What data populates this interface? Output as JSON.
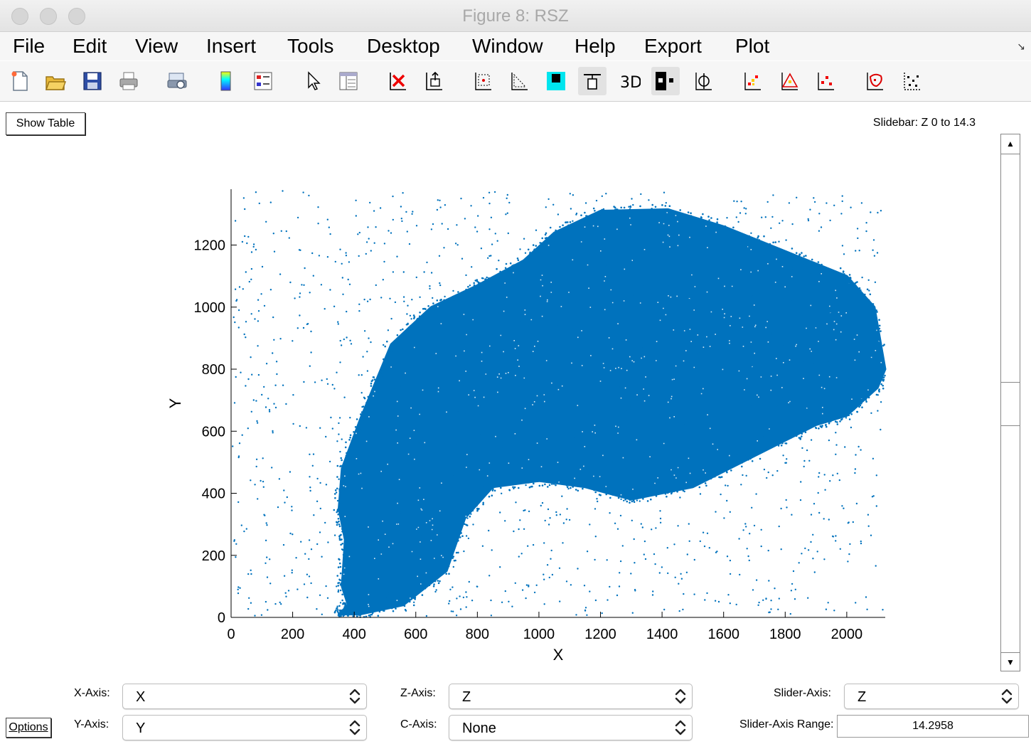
{
  "window": {
    "title": "Figure 8: RSZ"
  },
  "menu": [
    "File",
    "Edit",
    "View",
    "Insert",
    "Tools",
    "Desktop",
    "Window",
    "Help",
    "Export",
    "Plot"
  ],
  "toolbar": [
    {
      "name": "new-figure-icon",
      "x": 8
    },
    {
      "name": "open-file-icon",
      "x": 58
    },
    {
      "name": "save-icon",
      "x": 110
    },
    {
      "name": "print-icon",
      "x": 161
    },
    {
      "name": "print-preview-icon",
      "x": 229
    },
    {
      "name": "colorbar-icon",
      "x": 298
    },
    {
      "name": "legend-icon",
      "x": 350
    },
    {
      "name": "edit-plot-arrow-icon",
      "x": 420
    },
    {
      "name": "property-editor-icon",
      "x": 470
    },
    {
      "name": "delete-points-icon",
      "x": 539
    },
    {
      "name": "export-data-icon",
      "x": 590
    },
    {
      "name": "zoom-box-icon",
      "x": 659
    },
    {
      "name": "zoom-angle-icon",
      "x": 710
    },
    {
      "name": "fill-color-icon",
      "x": 762
    },
    {
      "name": "align-icon",
      "x": 813
    },
    {
      "name": "3d-view-icon",
      "x": 866
    },
    {
      "name": "toggle-points-icon",
      "x": 916
    },
    {
      "name": "rotate-icon",
      "x": 969
    },
    {
      "name": "scatter-red-yellow-icon",
      "x": 1038
    },
    {
      "name": "scatter-triangle-icon",
      "x": 1090
    },
    {
      "name": "scatter-red-icon",
      "x": 1141
    },
    {
      "name": "lasso-red-icon",
      "x": 1210
    },
    {
      "name": "scatter-sparse-icon",
      "x": 1262
    }
  ],
  "controls": {
    "show_table": "Show Table",
    "slidebar_label": "Slidebar: Z 0 to 14.3",
    "options": "Options",
    "x_axis_label": "X-Axis:",
    "x_axis_value": "X",
    "y_axis_label": "Y-Axis:",
    "y_axis_value": "Y",
    "z_axis_label": "Z-Axis:",
    "z_axis_value": "Z",
    "c_axis_label": "C-Axis:",
    "c_axis_value": "None",
    "slider_axis_label": "Slider-Axis:",
    "slider_axis_value": "Z",
    "slider_range_label": "Slider-Axis Range:",
    "slider_range_value": "14.2958"
  },
  "chart_data": {
    "type": "scatter",
    "xlabel": "X",
    "ylabel": "Y",
    "xlim": [
      0,
      2125
    ],
    "ylim": [
      0,
      1380
    ],
    "xticks": [
      0,
      200,
      400,
      600,
      800,
      1000,
      1200,
      1400,
      1600,
      1800,
      2000
    ],
    "yticks": [
      0,
      200,
      400,
      600,
      800,
      1000,
      1200
    ],
    "marker_color": "#0072bd",
    "grid": false,
    "series": [
      {
        "description_outline": [
          [
            370,
            250
          ],
          [
            360,
            100
          ],
          [
            380,
            40
          ],
          [
            350,
            10
          ],
          [
            420,
            10
          ],
          [
            560,
            40
          ],
          [
            700,
            150
          ],
          [
            760,
            320
          ],
          [
            850,
            420
          ],
          [
            1000,
            440
          ],
          [
            1150,
            420
          ],
          [
            1300,
            380
          ],
          [
            1500,
            420
          ],
          [
            1700,
            520
          ],
          [
            1900,
            620
          ],
          [
            2000,
            650
          ],
          [
            2100,
            740
          ],
          [
            2125,
            800
          ],
          [
            2090,
            1000
          ],
          [
            2000,
            1100
          ],
          [
            1800,
            1180
          ],
          [
            1600,
            1260
          ],
          [
            1420,
            1315
          ],
          [
            1200,
            1310
          ],
          [
            1050,
            1240
          ],
          [
            950,
            1150
          ],
          [
            800,
            1070
          ],
          [
            650,
            1000
          ],
          [
            520,
            880
          ],
          [
            420,
            640
          ],
          [
            360,
            480
          ],
          [
            350,
            350
          ]
        ],
        "approx_points": 60000,
        "sparse_background_points": 1500
      }
    ]
  }
}
